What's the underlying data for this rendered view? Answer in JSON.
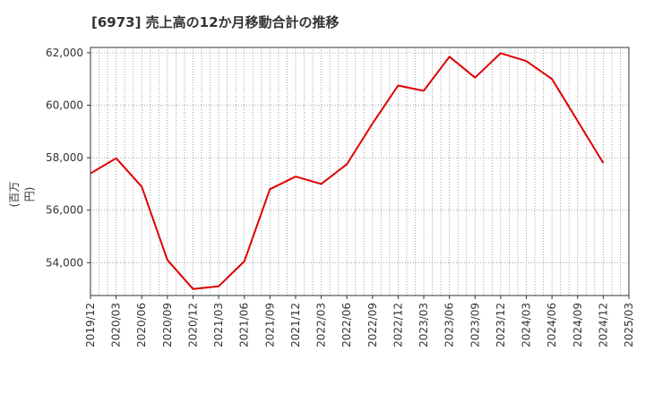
{
  "chart_data": {
    "type": "line",
    "title": "[6973]  売上高の12か月移動合計の推移",
    "ylabel": "(百万円)",
    "xlabel": "",
    "x_ticks": [
      "2019/12",
      "2020/03",
      "2020/06",
      "2020/09",
      "2020/12",
      "2021/03",
      "2021/06",
      "2021/09",
      "2021/12",
      "2022/03",
      "2022/06",
      "2022/09",
      "2022/12",
      "2023/03",
      "2023/06",
      "2023/09",
      "2023/12",
      "2024/03",
      "2024/06",
      "2024/09",
      "2024/12",
      "2025/03"
    ],
    "y_ticks": [
      54000,
      56000,
      58000,
      60000,
      62000
    ],
    "y_tick_labels": [
      "54,000",
      "56,000",
      "58,000",
      "60,000",
      "62,000"
    ],
    "ylim": [
      52750,
      62200
    ],
    "grid": true,
    "series": [
      {
        "name": "売上高",
        "color": "#dd0000",
        "x": [
          "2019/12",
          "2020/03",
          "2020/06",
          "2020/09",
          "2020/12",
          "2021/03",
          "2021/06",
          "2021/09",
          "2021/12",
          "2022/03",
          "2022/06",
          "2022/09",
          "2022/12",
          "2023/03",
          "2023/06",
          "2023/09",
          "2023/12",
          "2024/03",
          "2024/06",
          "2024/09",
          "2024/12"
        ],
        "values": [
          57400,
          57980,
          56900,
          54100,
          53000,
          53100,
          54050,
          56800,
          57280,
          57000,
          57750,
          59300,
          60750,
          60550,
          61850,
          61050,
          61980,
          61680,
          61000,
          59400,
          57800
        ]
      }
    ]
  }
}
